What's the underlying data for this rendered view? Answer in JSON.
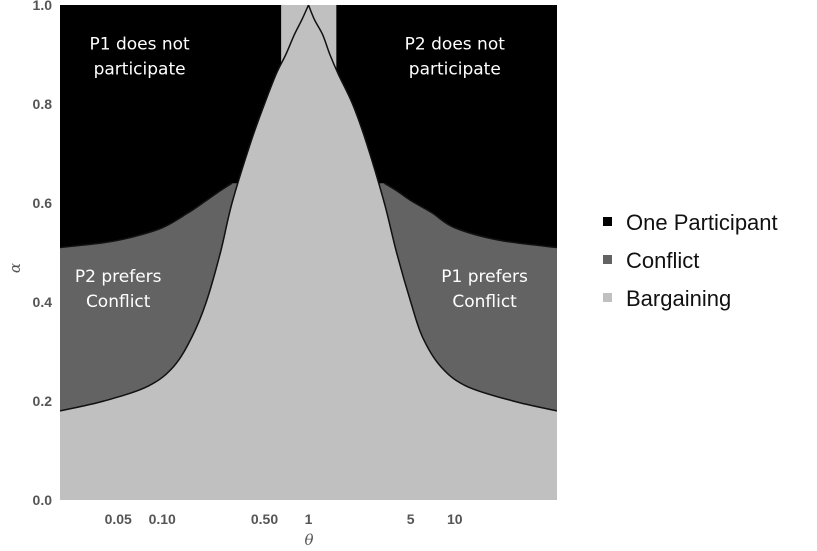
{
  "chart_data": {
    "type": "area",
    "title": "",
    "xlabel": "θ",
    "ylabel": "α",
    "x_scale": "log",
    "xlim": [
      0.02,
      50
    ],
    "ylim": [
      0,
      1
    ],
    "x_ticks": [
      {
        "value": 0.05,
        "label": "0.05"
      },
      {
        "value": 0.1,
        "label": "0.10"
      },
      {
        "value": 0.5,
        "label": "0.50"
      },
      {
        "value": 1,
        "label": "1"
      },
      {
        "value": 5,
        "label": "5"
      },
      {
        "value": 10,
        "label": "10"
      }
    ],
    "y_ticks": [
      {
        "value": 0,
        "label": "0.0"
      },
      {
        "value": 0.2,
        "label": "0.2"
      },
      {
        "value": 0.4,
        "label": "0.4"
      },
      {
        "value": 0.6,
        "label": "0.6"
      },
      {
        "value": 0.8,
        "label": "0.8"
      },
      {
        "value": 1,
        "label": "1.0"
      }
    ],
    "regions": [
      {
        "name": "One Participant",
        "color": "#000000"
      },
      {
        "name": "Conflict",
        "color": "#636363"
      },
      {
        "name": "Bargaining",
        "color": "#c0c0c0"
      }
    ],
    "boundaries": {
      "participation_left": {
        "x": [
          0.02,
          0.04,
          0.06,
          0.1,
          0.15,
          0.2,
          0.25,
          0.3
        ],
        "y": [
          0.51,
          0.52,
          0.53,
          0.55,
          0.58,
          0.605,
          0.625,
          0.64
        ]
      },
      "participation_right": {
        "x": [
          3.3,
          4,
          5,
          7,
          10,
          20,
          50
        ],
        "y": [
          0.64,
          0.625,
          0.605,
          0.58,
          0.55,
          0.525,
          0.51
        ]
      },
      "conflict_left": {
        "x": [
          0.02,
          0.04,
          0.08,
          0.12,
          0.16,
          0.2,
          0.25,
          0.3,
          0.4,
          0.5,
          0.6,
          0.7,
          0.8,
          0.9,
          1
        ],
        "y": [
          0.18,
          0.2,
          0.23,
          0.27,
          0.33,
          0.4,
          0.5,
          0.6,
          0.72,
          0.8,
          0.86,
          0.9,
          0.94,
          0.97,
          1
        ]
      },
      "conflict_right": {
        "x": [
          1,
          1.1,
          1.25,
          1.4,
          1.6,
          2,
          2.5,
          3.3,
          4,
          5,
          6,
          8,
          12,
          25,
          50
        ],
        "y": [
          1,
          0.97,
          0.94,
          0.9,
          0.86,
          0.8,
          0.72,
          0.6,
          0.5,
          0.4,
          0.33,
          0.27,
          0.23,
          0.2,
          0.18
        ]
      },
      "bargaining_band": {
        "x_left": 0.65,
        "x_right": 1.55
      }
    },
    "annotations": [
      {
        "text": [
          "P1 does not",
          "participate"
        ],
        "x": 0.07,
        "y": 0.91
      },
      {
        "text": [
          "P2 does not",
          "participate"
        ],
        "x": 10,
        "y": 0.91
      },
      {
        "text": [
          "P2 prefers",
          "Conflict"
        ],
        "x": 0.05,
        "y": 0.44
      },
      {
        "text": [
          "P1 prefers",
          "Conflict"
        ],
        "x": 16,
        "y": 0.44
      }
    ],
    "legend": {
      "position": "right",
      "entries": [
        "One Participant",
        "Conflict",
        "Bargaining"
      ]
    },
    "grid": false
  }
}
